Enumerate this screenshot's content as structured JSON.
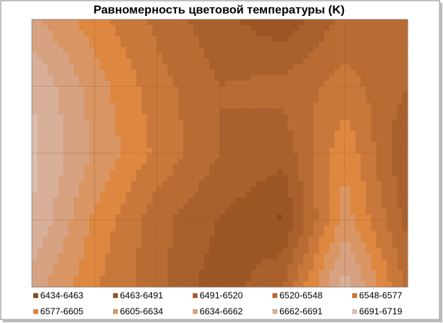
{
  "chart_data": {
    "type": "contour",
    "title": "Равномерность цветовой температуры (K)",
    "z": [
      [
        6640,
        6590,
        6540,
        6500,
        6470,
        6530,
        6520
      ],
      [
        6690,
        6620,
        6560,
        6520,
        6530,
        6560,
        6520
      ],
      [
        6700,
        6630,
        6570,
        6520,
        6500,
        6600,
        6490
      ],
      [
        6690,
        6600,
        6530,
        6490,
        6460,
        6620,
        6510
      ],
      [
        6650,
        6580,
        6530,
        6470,
        6520,
        6680,
        6540
      ]
    ],
    "levels": [
      6434,
      6463,
      6491,
      6520,
      6548,
      6577,
      6605,
      6634,
      6662,
      6691,
      6719
    ],
    "series": [
      {
        "name": "6434-6463",
        "color": "#8a4a1e"
      },
      {
        "name": "6463-6491",
        "color": "#9c5524"
      },
      {
        "name": "6491-6520",
        "color": "#a9602c"
      },
      {
        "name": "6520-6548",
        "color": "#b86c33"
      },
      {
        "name": "6548-6577",
        "color": "#c8783a"
      },
      {
        "name": "6577-6605",
        "color": "#de8740"
      },
      {
        "name": "6605-6634",
        "color": "#d99664"
      },
      {
        "name": "6634-6662",
        "color": "#d6a282"
      },
      {
        "name": "6662-6691",
        "color": "#d8b09a"
      },
      {
        "name": "6691-6719",
        "color": "#dcbeb0"
      }
    ]
  }
}
